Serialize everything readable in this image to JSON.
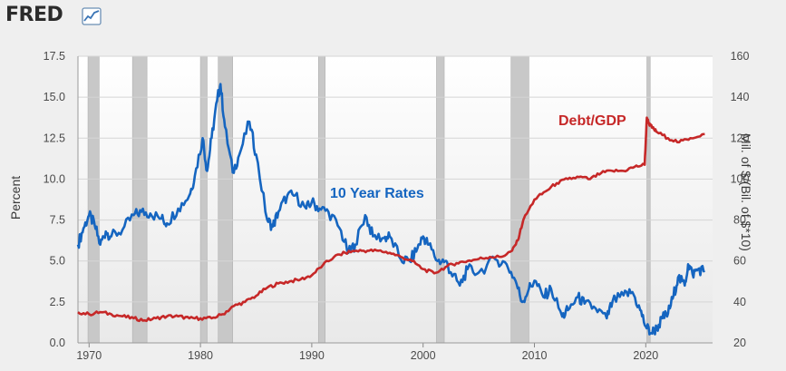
{
  "header": {
    "brand": "FRED",
    "brand_icon": "line-chart-icon"
  },
  "chart_data": {
    "type": "line",
    "title": "",
    "xlabel": "",
    "ylabel": "Percent",
    "ylabel_right": "Mil. of $/(Bil. of $*10)",
    "xlim": [
      1969,
      2026
    ],
    "ylim": [
      0,
      17.5
    ],
    "ylim_right": [
      20,
      160
    ],
    "x_ticks": [
      "1970",
      "1980",
      "1990",
      "2000",
      "2010",
      "2020"
    ],
    "y_ticks": [
      "0.0",
      "2.5",
      "5.0",
      "7.5",
      "10.0",
      "12.5",
      "15.0",
      "17.5"
    ],
    "y_ticks_right": [
      "20",
      "40",
      "60",
      "80",
      "100",
      "120",
      "140",
      "160"
    ],
    "grid": true,
    "legend": "none",
    "recessions": [
      [
        1969.9,
        1970.9
      ],
      [
        1973.9,
        1975.2
      ],
      [
        1980.0,
        1980.6
      ],
      [
        1981.6,
        1982.9
      ],
      [
        1990.6,
        1991.2
      ],
      [
        2001.2,
        2001.9
      ],
      [
        2007.9,
        2009.5
      ],
      [
        2020.1,
        2020.4
      ]
    ],
    "annotations": [
      {
        "label": "10 Year Rates",
        "series": "10 Year Rates"
      },
      {
        "label": "Debt/GDP",
        "series": "Debt/GDP"
      }
    ],
    "series": [
      {
        "name": "10 Year Rates",
        "axis": "left",
        "color": "#1565c0",
        "x": [
          1969.0,
          1969.5,
          1970.0,
          1970.5,
          1971.0,
          1971.5,
          1972.0,
          1973.0,
          1974.0,
          1974.7,
          1975.5,
          1976.5,
          1977.0,
          1978.0,
          1979.0,
          1979.5,
          1980.2,
          1980.6,
          1981.0,
          1981.5,
          1981.8,
          1982.2,
          1982.9,
          1983.5,
          1984.4,
          1985.0,
          1986.0,
          1986.5,
          1987.0,
          1987.8,
          1988.5,
          1989.5,
          1990.0,
          1990.7,
          1991.5,
          1992.5,
          1993.3,
          1993.9,
          1994.8,
          1995.5,
          1996.5,
          1997.0,
          1998.0,
          1998.8,
          1999.5,
          2000.0,
          2000.5,
          2001.3,
          2002.0,
          2002.5,
          2003.3,
          2004.0,
          2005.0,
          2006.5,
          2007.5,
          2008.3,
          2008.9,
          2009.5,
          2010.0,
          2010.8,
          2011.5,
          2012.5,
          2013.0,
          2013.9,
          2014.5,
          2015.5,
          2016.5,
          2017.0,
          2018.0,
          2018.8,
          2019.5,
          2020.0,
          2020.5,
          2021.0,
          2021.5,
          2022.0,
          2022.5,
          2022.9,
          2023.5,
          2023.8,
          2024.2,
          2024.7,
          2025.3
        ],
        "y": [
          6.0,
          7.0,
          7.8,
          7.2,
          6.0,
          6.8,
          6.5,
          6.9,
          7.8,
          8.0,
          7.9,
          7.6,
          7.3,
          8.2,
          9.0,
          10.2,
          12.5,
          10.5,
          12.5,
          14.8,
          15.8,
          13.2,
          10.4,
          11.5,
          13.5,
          11.5,
          7.5,
          7.1,
          8.0,
          9.0,
          9.0,
          8.2,
          8.6,
          8.2,
          8.0,
          7.0,
          5.5,
          6.0,
          7.8,
          6.5,
          6.4,
          6.5,
          5.1,
          5.0,
          5.8,
          6.5,
          6.0,
          5.0,
          5.0,
          4.3,
          3.5,
          4.5,
          4.3,
          5.1,
          4.8,
          3.8,
          2.5,
          3.3,
          3.8,
          2.8,
          3.3,
          1.6,
          2.0,
          2.8,
          2.4,
          2.1,
          1.5,
          2.5,
          2.9,
          3.1,
          2.0,
          1.0,
          0.6,
          0.9,
          1.5,
          1.8,
          2.9,
          4.0,
          3.5,
          4.8,
          4.2,
          4.5,
          4.4
        ]
      },
      {
        "name": "Debt/GDP",
        "axis": "right",
        "color": "#c62828",
        "x": [
          1969.0,
          1970.0,
          1971.0,
          1972.0,
          1973.0,
          1974.0,
          1975.0,
          1976.0,
          1977.0,
          1978.0,
          1979.0,
          1980.0,
          1981.0,
          1982.0,
          1983.0,
          1984.0,
          1985.0,
          1986.0,
          1987.0,
          1988.0,
          1989.0,
          1990.0,
          1991.0,
          1992.0,
          1993.0,
          1994.0,
          1995.0,
          1996.0,
          1997.0,
          1998.0,
          1999.0,
          2000.0,
          2001.0,
          2002.0,
          2003.0,
          2004.0,
          2005.0,
          2006.0,
          2007.0,
          2008.0,
          2008.5,
          2009.0,
          2010.0,
          2011.0,
          2012.0,
          2013.0,
          2014.0,
          2015.0,
          2016.0,
          2017.0,
          2018.0,
          2019.0,
          2019.9,
          2020.1,
          2020.3,
          2020.6,
          2021.0,
          2022.0,
          2023.0,
          2024.0,
          2025.3
        ],
        "y": [
          35,
          34,
          35,
          34,
          33,
          32,
          31,
          32,
          33,
          33,
          32,
          32,
          32,
          34,
          38,
          40,
          43,
          47,
          49,
          50,
          51,
          53,
          58,
          62,
          64,
          65,
          65,
          65,
          64,
          62,
          60,
          56,
          54,
          57,
          59,
          60,
          61,
          62,
          62,
          65,
          70,
          80,
          90,
          94,
          98,
          100,
          101,
          100,
          103,
          104,
          104,
          106,
          107,
          130,
          127,
          125,
          123,
          120,
          118,
          120,
          122
        ]
      }
    ]
  }
}
